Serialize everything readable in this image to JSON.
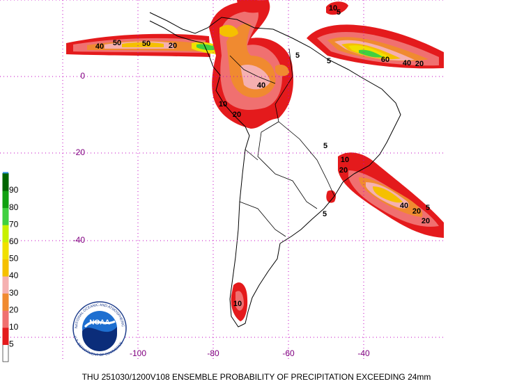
{
  "caption": "THU 251030/1200V108  ENSEMBLE PROBABILITY OF PRECIPITATION EXCEEDING 24mm",
  "axes": {
    "lon_labels": [
      "-100",
      "-80",
      "-60",
      "-40"
    ],
    "lat_labels": [
      "0",
      "-20",
      "-40"
    ]
  },
  "legend": {
    "bottom_color": "#ffffff",
    "levels": [
      {
        "label": "5",
        "color": "#e41a1c"
      },
      {
        "label": "10",
        "color": "#f07070"
      },
      {
        "label": "20",
        "color": "#f08a30"
      },
      {
        "label": "30",
        "color": "#f5b0b0"
      },
      {
        "label": "40",
        "color": "#f5c000"
      },
      {
        "label": "50",
        "color": "#f0e000"
      },
      {
        "label": "60",
        "color": "#c8f000"
      },
      {
        "label": "70",
        "color": "#40d040"
      },
      {
        "label": "80",
        "color": "#10a010"
      },
      {
        "label": "90",
        "color": "#006400"
      }
    ],
    "top_color": "#3090e0"
  },
  "logo": {
    "name": "NOAA",
    "ring_top": "NATIONAL OCEANIC AND ATMOSPHERIC ADMINISTRATION",
    "ring_bottom": "U.S. DEPARTMENT OF COMMERCE"
  },
  "contour_labels": [
    "40",
    "50",
    "50",
    "20",
    "60",
    "40",
    "20",
    "40",
    "20",
    "10",
    "5",
    "10",
    "20",
    "40",
    "20",
    "5",
    "20",
    "5",
    "5",
    "5",
    "10",
    "5",
    "10"
  ]
}
